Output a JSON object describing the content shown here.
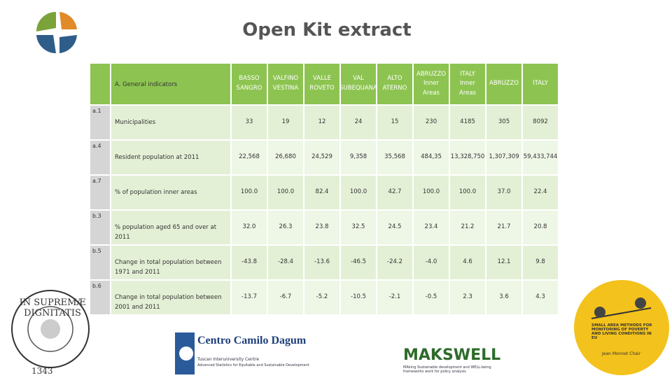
{
  "title": "Open Kit extract",
  "table": {
    "corner": "A. General indicators",
    "columns": [
      "BASSO SANGRO",
      "VALFINO VESTINA",
      "VALLE ROVETO",
      "VAL SUBEQUANA",
      "ALTO ATERNO",
      "ABRUZZO Inner Areas",
      "ITALY Inner Areas",
      "ABRUZZO",
      "ITALY"
    ],
    "rows": [
      {
        "code": "a.1",
        "label": "Municipalities",
        "values": [
          "33",
          "19",
          "12",
          "24",
          "15",
          "230",
          "4185",
          "305",
          "8092"
        ]
      },
      {
        "code": "a.4",
        "label": "Resident population at 2011",
        "values": [
          "22,568",
          "26,680",
          "24,529",
          "9,358",
          "35,568",
          "484,35",
          "13,328,750",
          "1,307,309",
          "59,433,744"
        ]
      },
      {
        "code": "a.7",
        "label": "% of population inner areas",
        "values": [
          "100.0",
          "100.0",
          "82.4",
          "100.0",
          "42.7",
          "100.0",
          "100.0",
          "37.0",
          "22.4"
        ]
      },
      {
        "code": "b.3",
        "label": "% population aged 65 and over at 2011",
        "values": [
          "32.0",
          "26.3",
          "23.8",
          "32.5",
          "24.5",
          "23.4",
          "21.2",
          "21.7",
          "20.8"
        ]
      },
      {
        "code": "b.5",
        "label": "Change in total population between 1971 and 2011",
        "values": [
          "-43.8",
          "-28.4",
          "-13.6",
          "-46.5",
          "-24.2",
          "-4.0",
          "4.6",
          "12.1",
          "9.8"
        ]
      },
      {
        "code": "b.6",
        "label": "Change in total population between 2001 and 2011",
        "values": [
          "-13.7",
          "-6.7",
          "-5.2",
          "-10.5",
          "-2.1",
          "-0.5",
          "2.3",
          "3.6",
          "4.3"
        ]
      }
    ]
  },
  "logos": {
    "seal_motto": "IN SUPREMÆ DIGNITATIS",
    "seal_year": "1343",
    "dagum_name": "Centro Camilo Dagum",
    "dagum_sub1": "Tuscan Interuniversity Centre",
    "dagum_sub2": "Advanced Statistics for Equitable and Sustainable Development",
    "makswell_name": "MAKSWELL",
    "makswell_sub": "MAking Sustainable development and WELL-being frameworks work for policy analysis",
    "sam_text": "SMALL AREA METHODS FOR MONITORING OF POVERTY AND LIVING CONDITIONS IN EU",
    "sam_chair": "Jean Monnet Chair"
  }
}
